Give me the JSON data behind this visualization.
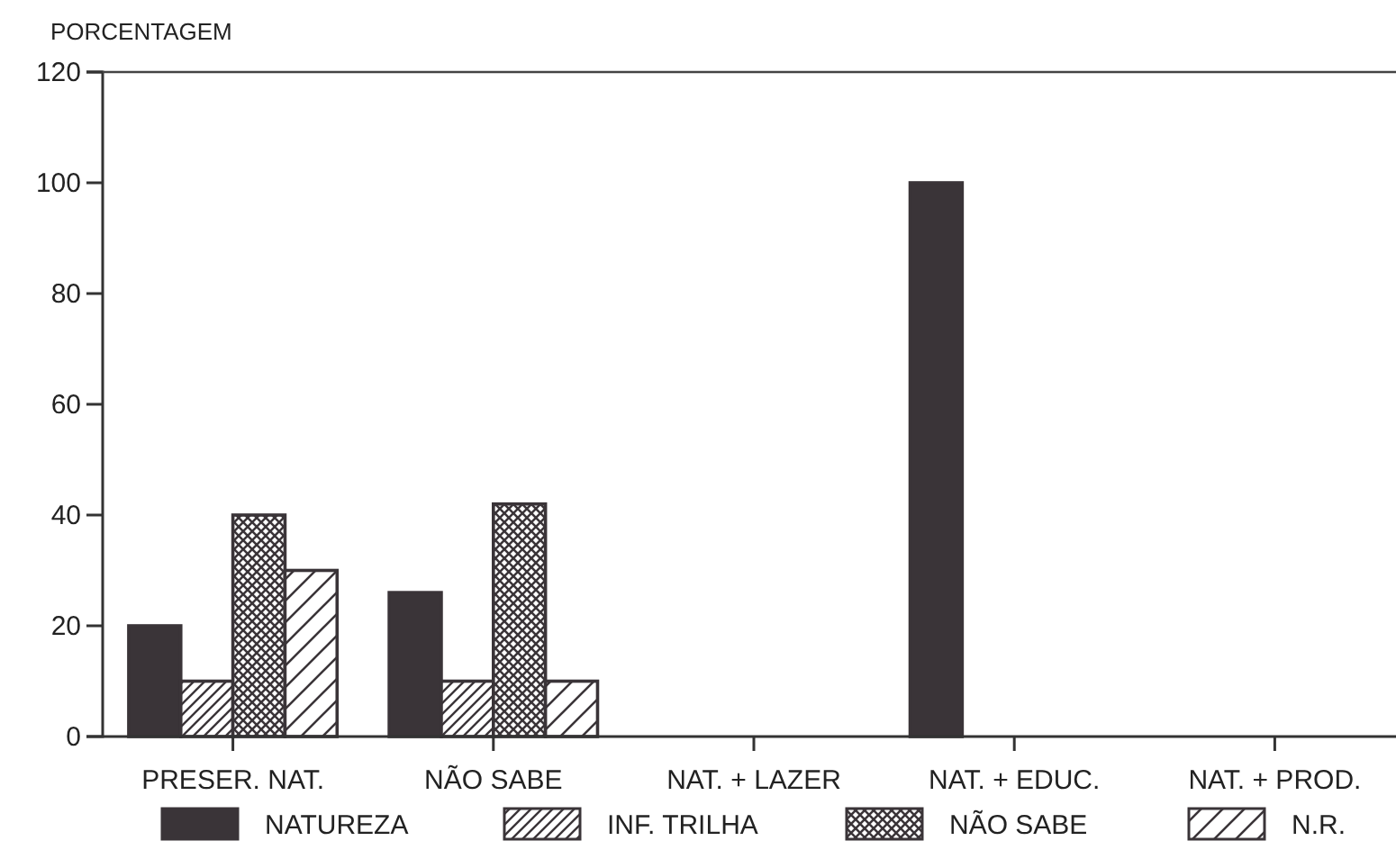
{
  "chart_data": {
    "type": "bar",
    "ylabel": "PORCENTAGEM",
    "categories": [
      "PRESER. NAT.",
      "NÃO SABE",
      "NAT. + LAZER",
      "NAT. + EDUC.",
      "NAT. + PROD."
    ],
    "series": [
      {
        "name": "NATUREZA",
        "color": "#3a3438",
        "values": [
          20,
          26,
          null,
          100,
          null
        ]
      },
      {
        "name": "INF. TRILHA",
        "color": "#3a3438",
        "values": [
          10,
          10,
          null,
          null,
          null
        ]
      },
      {
        "name": "NÃO SABE",
        "color": "#3a3438",
        "values": [
          40,
          42,
          null,
          null,
          null
        ]
      },
      {
        "name": "N.R.",
        "color": "#3a3438",
        "values": [
          30,
          10,
          null,
          null,
          null
        ]
      }
    ],
    "ylim": [
      0,
      120
    ],
    "yticks": [
      0,
      20,
      40,
      60,
      80,
      100,
      120
    ],
    "grid": false,
    "legend": "bottom"
  }
}
